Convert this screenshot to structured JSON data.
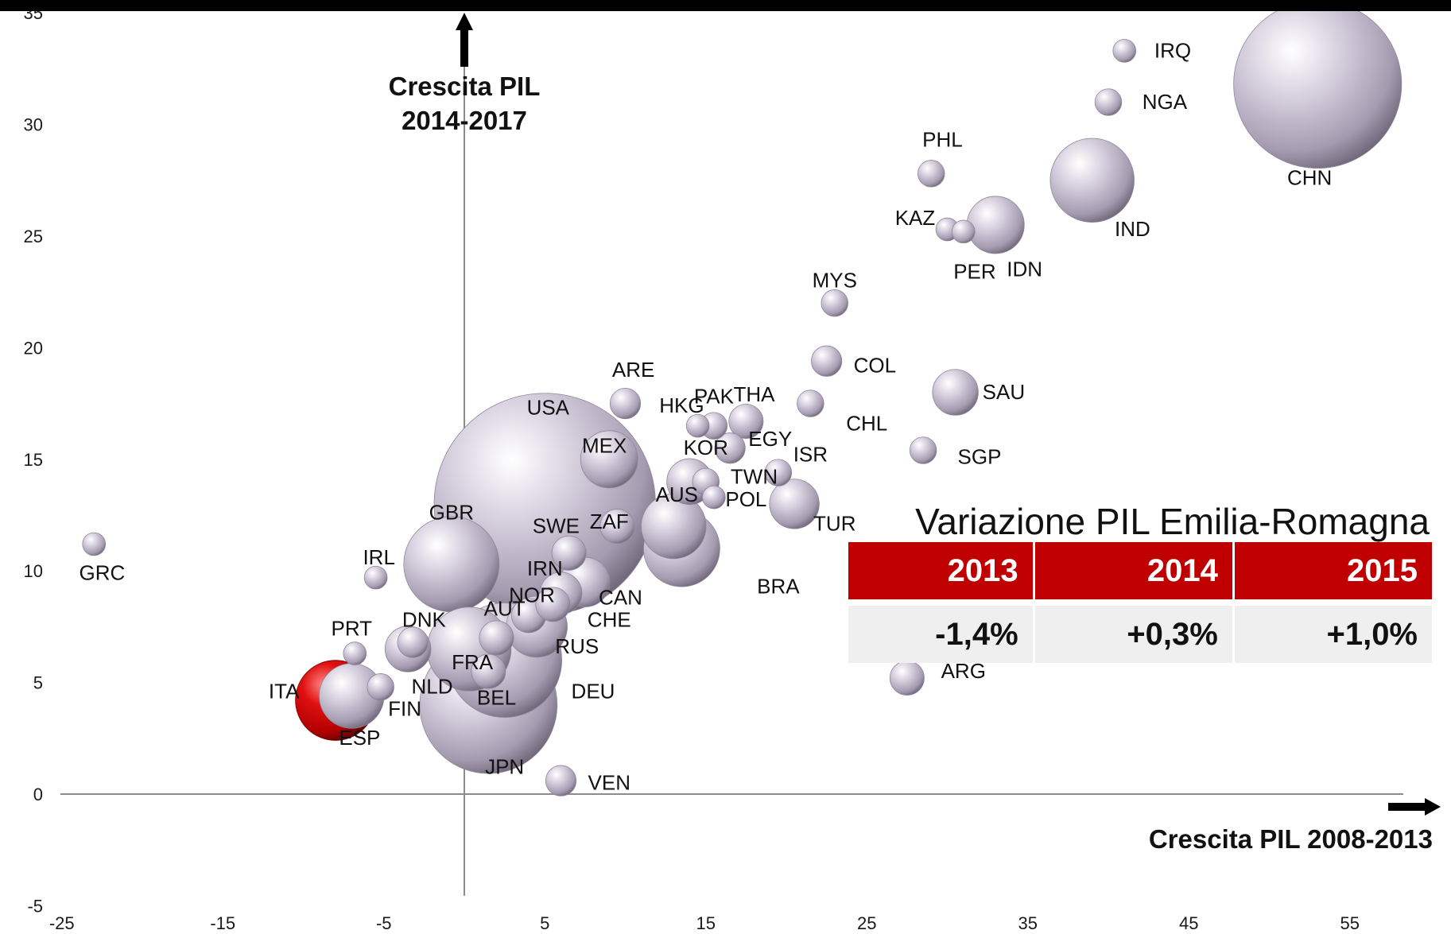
{
  "chart_data": {
    "type": "scatter",
    "title": "",
    "xlabel": "Crescita PIL 2008-2013",
    "ylabel": "Crescita PIL 2014-2017",
    "ylabel_lines": [
      "Crescita PIL",
      "2014-2017"
    ],
    "xlim": [
      -25,
      62
    ],
    "ylim": [
      -5,
      35
    ],
    "xticks": [
      -25,
      -15,
      -5,
      5,
      15,
      25,
      35,
      45,
      55
    ],
    "yticks": [
      -5,
      0,
      5,
      10,
      15,
      20,
      25,
      30,
      35
    ],
    "grid": false,
    "bubble_color": "#c9c2d3",
    "highlight_color": "#c00000",
    "points": [
      {
        "label": "CHN",
        "x": 53,
        "y": 31.8,
        "size": 44
      },
      {
        "label": "USA",
        "x": 5,
        "y": 13,
        "size": 58
      },
      {
        "label": "JPN",
        "x": 1.5,
        "y": 4,
        "size": 36
      },
      {
        "label": "DEU",
        "x": 2.5,
        "y": 6,
        "size": 30
      },
      {
        "label": "IND",
        "x": 39,
        "y": 27.5,
        "size": 22
      },
      {
        "label": "BRA",
        "x": 13.5,
        "y": 11,
        "size": 20
      },
      {
        "label": "GBR",
        "x": -0.8,
        "y": 10.3,
        "size": 25
      },
      {
        "label": "FRA",
        "x": 0.3,
        "y": 6.5,
        "size": 22
      },
      {
        "label": "ITA",
        "x": -8,
        "y": 4.2,
        "size": 21,
        "highlight": true
      },
      {
        "label": "ESP",
        "x": -7,
        "y": 4.4,
        "size": 17
      },
      {
        "label": "RUS",
        "x": 4.5,
        "y": 7.5,
        "size": 16
      },
      {
        "label": "CAN",
        "x": 7.5,
        "y": 9.5,
        "size": 13
      },
      {
        "label": "AUS",
        "x": 13,
        "y": 12,
        "size": 17
      },
      {
        "label": "MEX",
        "x": 9,
        "y": 15,
        "size": 15
      },
      {
        "label": "KOR",
        "x": 14,
        "y": 14,
        "size": 12
      },
      {
        "label": "IDN",
        "x": 33,
        "y": 25.5,
        "size": 15
      },
      {
        "label": "TUR",
        "x": 20.5,
        "y": 13,
        "size": 13
      },
      {
        "label": "SAU",
        "x": 30.5,
        "y": 18,
        "size": 12
      },
      {
        "label": "ZAF",
        "x": 9.5,
        "y": 12,
        "size": 9
      },
      {
        "label": "SWE",
        "x": 6.5,
        "y": 10.8,
        "size": 9
      },
      {
        "label": "IRN",
        "x": 6,
        "y": 9,
        "size": 11
      },
      {
        "label": "NOR",
        "x": 4,
        "y": 8,
        "size": 9
      },
      {
        "label": "CHE",
        "x": 5.5,
        "y": 8.5,
        "size": 9
      },
      {
        "label": "AUT",
        "x": 2,
        "y": 7,
        "size": 9
      },
      {
        "label": "BEL",
        "x": 1.5,
        "y": 5.5,
        "size": 9
      },
      {
        "label": "NLD",
        "x": -3.5,
        "y": 6.5,
        "size": 12
      },
      {
        "label": "DNK",
        "x": -3.2,
        "y": 6.8,
        "size": 8
      },
      {
        "label": "FIN",
        "x": -5.2,
        "y": 4.8,
        "size": 7
      },
      {
        "label": "PRT",
        "x": -6.8,
        "y": 6.3,
        "size": 6
      },
      {
        "label": "IRL",
        "x": -5.5,
        "y": 9.7,
        "size": 6
      },
      {
        "label": "GRC",
        "x": -23,
        "y": 11.2,
        "size": 6
      },
      {
        "label": "ARE",
        "x": 10,
        "y": 17.5,
        "size": 8
      },
      {
        "label": "HKG",
        "x": 14.5,
        "y": 16.5,
        "size": 6
      },
      {
        "label": "PAK",
        "x": 15.5,
        "y": 16.5,
        "size": 7
      },
      {
        "label": "THA",
        "x": 17.5,
        "y": 16.7,
        "size": 9
      },
      {
        "label": "EGY",
        "x": 16.5,
        "y": 15.5,
        "size": 8
      },
      {
        "label": "TWN",
        "x": 15,
        "y": 14,
        "size": 7
      },
      {
        "label": "POL",
        "x": 15.5,
        "y": 13.3,
        "size": 6
      },
      {
        "label": "ISR",
        "x": 19.5,
        "y": 14.4,
        "size": 7
      },
      {
        "label": "CHL",
        "x": 21.5,
        "y": 17.5,
        "size": 7
      },
      {
        "label": "COL",
        "x": 22.5,
        "y": 19.4,
        "size": 8
      },
      {
        "label": "MYS",
        "x": 23,
        "y": 22,
        "size": 7
      },
      {
        "label": "SGP",
        "x": 28.5,
        "y": 15.4,
        "size": 7
      },
      {
        "label": "ARG",
        "x": 27.5,
        "y": 5.2,
        "size": 9
      },
      {
        "label": "VEN",
        "x": 6,
        "y": 0.6,
        "size": 8
      },
      {
        "label": "PHL",
        "x": 29,
        "y": 27.8,
        "size": 7
      },
      {
        "label": "KAZ",
        "x": 30,
        "y": 25.3,
        "size": 6
      },
      {
        "label": "PER",
        "x": 31,
        "y": 25.2,
        "size": 6
      },
      {
        "label": "NGA",
        "x": 40,
        "y": 31,
        "size": 7
      },
      {
        "label": "IRQ",
        "x": 41,
        "y": 33.3,
        "size": 6
      }
    ],
    "labels": [
      {
        "text": "CHN",
        "x": 52.5,
        "y": 27.3
      },
      {
        "text": "USA",
        "x": 5.2,
        "y": 17.0
      },
      {
        "text": "JPN",
        "x": 2.5,
        "y": 0.9
      },
      {
        "text": "DEU",
        "x": 8.0,
        "y": 4.3
      },
      {
        "text": "IND",
        "x": 41.5,
        "y": 25.0
      },
      {
        "text": "BRA",
        "x": 19.5,
        "y": 9.0
      },
      {
        "text": "GBR",
        "x": -0.8,
        "y": 12.3
      },
      {
        "text": "FRA",
        "x": 0.5,
        "y": 5.6
      },
      {
        "text": "ITA",
        "x": -11.2,
        "y": 4.3
      },
      {
        "text": "ESP",
        "x": -6.5,
        "y": 2.2
      },
      {
        "text": "RUS",
        "x": 7.0,
        "y": 6.3
      },
      {
        "text": "CAN",
        "x": 9.7,
        "y": 8.5
      },
      {
        "text": "AUS",
        "x": 13.2,
        "y": 13.1
      },
      {
        "text": "MEX",
        "x": 8.7,
        "y": 15.3
      },
      {
        "text": "KOR",
        "x": 15.0,
        "y": 15.2
      },
      {
        "text": "IDN",
        "x": 34.8,
        "y": 23.2
      },
      {
        "text": "TUR",
        "x": 23.0,
        "y": 11.8
      },
      {
        "text": "SAU",
        "x": 33.5,
        "y": 17.7
      },
      {
        "text": "ZAF",
        "x": 9.0,
        "y": 11.9
      },
      {
        "text": "SWE",
        "x": 5.7,
        "y": 11.7
      },
      {
        "text": "IRN",
        "x": 5.0,
        "y": 9.8
      },
      {
        "text": "NOR",
        "x": 4.2,
        "y": 8.6
      },
      {
        "text": "CHE",
        "x": 9.0,
        "y": 7.5
      },
      {
        "text": "AUT",
        "x": 2.5,
        "y": 8.0
      },
      {
        "text": "BEL",
        "x": 2.0,
        "y": 4.0
      },
      {
        "text": "NLD",
        "x": -2.0,
        "y": 4.5
      },
      {
        "text": "DNK",
        "x": -2.5,
        "y": 7.5
      },
      {
        "text": "FIN",
        "x": -3.7,
        "y": 3.5
      },
      {
        "text": "PRT",
        "x": -7.0,
        "y": 7.1
      },
      {
        "text": "IRL",
        "x": -5.3,
        "y": 10.3
      },
      {
        "text": "GRC",
        "x": -22.5,
        "y": 9.6
      },
      {
        "text": "ARE",
        "x": 10.5,
        "y": 18.7
      },
      {
        "text": "HKG",
        "x": 13.5,
        "y": 17.1
      },
      {
        "text": "PAK",
        "x": 15.5,
        "y": 17.5
      },
      {
        "text": "THA",
        "x": 18.0,
        "y": 17.6
      },
      {
        "text": "EGY",
        "x": 19.0,
        "y": 15.6
      },
      {
        "text": "TWN",
        "x": 18.0,
        "y": 13.9
      },
      {
        "text": "POL",
        "x": 17.5,
        "y": 12.9
      },
      {
        "text": "ISR",
        "x": 21.5,
        "y": 14.9
      },
      {
        "text": "CHL",
        "x": 25.0,
        "y": 16.3
      },
      {
        "text": "COL",
        "x": 25.5,
        "y": 18.9
      },
      {
        "text": "MYS",
        "x": 23.0,
        "y": 22.7
      },
      {
        "text": "SGP",
        "x": 32.0,
        "y": 14.8
      },
      {
        "text": "ARG",
        "x": 31.0,
        "y": 5.2
      },
      {
        "text": "VEN",
        "x": 9.0,
        "y": 0.2
      },
      {
        "text": "PHL",
        "x": 29.7,
        "y": 29.0
      },
      {
        "text": "KAZ",
        "x": 28.0,
        "y": 25.5
      },
      {
        "text": "PER",
        "x": 31.7,
        "y": 23.1
      },
      {
        "text": "NGA",
        "x": 43.5,
        "y": 30.7
      },
      {
        "text": "IRQ",
        "x": 44.0,
        "y": 33.0
      }
    ]
  },
  "er_panel": {
    "title": "Variazione PIL Emilia-Romagna",
    "years": [
      "2013",
      "2014",
      "2015"
    ],
    "values": [
      "-1,4%",
      "+0,3%",
      "+1,0%"
    ],
    "header_color": "#c00000"
  }
}
